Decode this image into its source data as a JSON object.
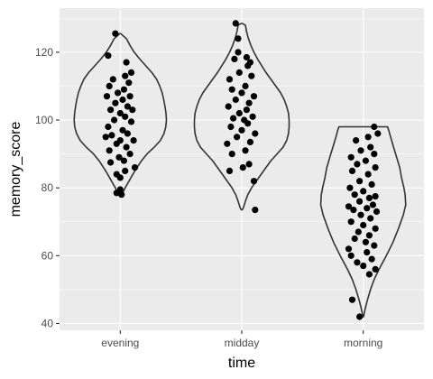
{
  "chart_data": {
    "type": "violin",
    "title": "",
    "xlabel": "time",
    "ylabel": "memory_score",
    "categories": [
      "evening",
      "midday",
      "morning"
    ],
    "ylim": [
      38,
      133
    ],
    "yticks": [
      40,
      60,
      80,
      100,
      120
    ],
    "grid": true,
    "legend": "none",
    "colors": {
      "panel": "#ebebeb",
      "grid": "#ffffff",
      "outline": "#333333",
      "point": "#000000"
    },
    "violins": [
      {
        "category": "evening",
        "profile": [
          [
            77.5,
            0.003
          ],
          [
            78,
            0.013
          ],
          [
            80,
            0.04
          ],
          [
            82,
            0.072
          ],
          [
            85,
            0.12
          ],
          [
            88,
            0.175
          ],
          [
            90,
            0.22
          ],
          [
            92,
            0.28
          ],
          [
            94,
            0.33
          ],
          [
            96,
            0.36
          ],
          [
            98,
            0.375
          ],
          [
            100,
            0.38
          ],
          [
            102,
            0.376
          ],
          [
            104,
            0.368
          ],
          [
            106,
            0.358
          ],
          [
            108,
            0.345
          ],
          [
            110,
            0.325
          ],
          [
            112,
            0.3
          ],
          [
            114,
            0.26
          ],
          [
            116,
            0.21
          ],
          [
            118,
            0.16
          ],
          [
            120,
            0.115
          ],
          [
            122,
            0.08
          ],
          [
            124,
            0.05
          ],
          [
            125.5,
            0.003
          ]
        ],
        "points": [
          [
            -0.04,
            125.5
          ],
          [
            0.01,
            78
          ],
          [
            -0.03,
            78.5
          ],
          [
            0.0,
            79.5
          ],
          [
            -0.1,
            119
          ],
          [
            0.05,
            117
          ],
          [
            0.09,
            114
          ],
          [
            0.04,
            113
          ],
          [
            -0.06,
            112
          ],
          [
            0.07,
            111
          ],
          [
            -0.09,
            110
          ],
          [
            0.03,
            109
          ],
          [
            -0.02,
            108
          ],
          [
            0.08,
            107
          ],
          [
            -0.11,
            107
          ],
          [
            0.02,
            106
          ],
          [
            -0.04,
            105
          ],
          [
            0.06,
            104
          ],
          [
            0.1,
            103
          ],
          [
            -0.08,
            103
          ],
          [
            0.0,
            102
          ],
          [
            0.04,
            101
          ],
          [
            -0.05,
            100
          ],
          [
            0.09,
            99.5
          ],
          [
            -0.1,
            98
          ],
          [
            0.02,
            97
          ],
          [
            0.06,
            96
          ],
          [
            -0.07,
            95.5
          ],
          [
            -0.12,
            95
          ],
          [
            0.0,
            94
          ],
          [
            0.11,
            94
          ],
          [
            -0.03,
            93
          ],
          [
            0.05,
            92
          ],
          [
            -0.09,
            91
          ],
          [
            0.08,
            90
          ],
          [
            -0.01,
            89
          ],
          [
            0.03,
            88
          ],
          [
            -0.08,
            87.5
          ],
          [
            0.12,
            86
          ],
          [
            0.04,
            85
          ],
          [
            -0.03,
            84
          ],
          [
            0.0,
            83
          ]
        ]
      },
      {
        "category": "midday",
        "profile": [
          [
            73.5,
            0.003
          ],
          [
            74,
            0.012
          ],
          [
            76,
            0.03
          ],
          [
            78,
            0.05
          ],
          [
            80,
            0.08
          ],
          [
            84,
            0.16
          ],
          [
            88,
            0.24
          ],
          [
            90,
            0.29
          ],
          [
            92,
            0.34
          ],
          [
            94,
            0.37
          ],
          [
            96,
            0.385
          ],
          [
            98,
            0.39
          ],
          [
            100,
            0.39
          ],
          [
            102,
            0.385
          ],
          [
            104,
            0.37
          ],
          [
            106,
            0.35
          ],
          [
            108,
            0.32
          ],
          [
            110,
            0.28
          ],
          [
            112,
            0.24
          ],
          [
            114,
            0.2
          ],
          [
            116,
            0.165
          ],
          [
            118,
            0.13
          ],
          [
            120,
            0.1
          ],
          [
            122,
            0.075
          ],
          [
            124,
            0.055
          ],
          [
            126,
            0.04
          ],
          [
            128,
            0.03
          ],
          [
            128.5,
            0.003
          ]
        ],
        "points": [
          [
            -0.05,
            128.5
          ],
          [
            -0.03,
            124
          ],
          [
            0.11,
            73.5
          ],
          [
            0.1,
            82
          ],
          [
            -0.1,
            85
          ],
          [
            0.06,
            87
          ],
          [
            0.01,
            86
          ],
          [
            -0.08,
            90
          ],
          [
            0.03,
            91
          ],
          [
            -0.12,
            93
          ],
          [
            0.07,
            93.5
          ],
          [
            -0.04,
            95
          ],
          [
            0.11,
            96
          ],
          [
            0.0,
            97
          ],
          [
            -0.09,
            98
          ],
          [
            0.05,
            99
          ],
          [
            0.02,
            100
          ],
          [
            -0.07,
            100.5
          ],
          [
            0.09,
            101
          ],
          [
            -0.02,
            102
          ],
          [
            0.04,
            103
          ],
          [
            -0.11,
            104
          ],
          [
            0.06,
            105
          ],
          [
            -0.05,
            106
          ],
          [
            0.1,
            107
          ],
          [
            0.0,
            108
          ],
          [
            -0.08,
            109
          ],
          [
            0.03,
            110
          ],
          [
            -0.1,
            112
          ],
          [
            0.08,
            113
          ],
          [
            -0.02,
            114
          ],
          [
            0.05,
            116
          ],
          [
            -0.06,
            118
          ],
          [
            0.04,
            118.5
          ],
          [
            0.07,
            117
          ],
          [
            -0.03,
            120
          ]
        ]
      },
      {
        "category": "morning",
        "profile": [
          [
            42,
            0.003
          ],
          [
            43,
            0.008
          ],
          [
            45,
            0.02
          ],
          [
            47,
            0.035
          ],
          [
            50,
            0.06
          ],
          [
            53,
            0.09
          ],
          [
            56,
            0.13
          ],
          [
            60,
            0.19
          ],
          [
            64,
            0.245
          ],
          [
            68,
            0.29
          ],
          [
            72,
            0.33
          ],
          [
            75,
            0.35
          ],
          [
            78,
            0.345
          ],
          [
            80,
            0.335
          ],
          [
            83,
            0.315
          ],
          [
            86,
            0.3
          ],
          [
            89,
            0.275
          ],
          [
            92,
            0.25
          ],
          [
            95,
            0.225
          ],
          [
            97,
            0.21
          ],
          [
            98,
            0.2
          ]
        ],
        "points": [
          [
            -0.03,
            42
          ],
          [
            -0.09,
            47
          ],
          [
            0.05,
            54.5
          ],
          [
            0.1,
            56
          ],
          [
            0.0,
            57
          ],
          [
            -0.05,
            58
          ],
          [
            0.07,
            59
          ],
          [
            -0.1,
            60
          ],
          [
            0.03,
            61
          ],
          [
            -0.12,
            62
          ],
          [
            0.09,
            63
          ],
          [
            0.02,
            64
          ],
          [
            -0.07,
            65
          ],
          [
            0.05,
            66
          ],
          [
            -0.04,
            67
          ],
          [
            0.1,
            68
          ],
          [
            0.0,
            69
          ],
          [
            -0.1,
            70
          ],
          [
            0.06,
            71
          ],
          [
            -0.02,
            72
          ],
          [
            0.11,
            73
          ],
          [
            -0.08,
            73.5
          ],
          [
            0.03,
            74
          ],
          [
            -0.12,
            74.5
          ],
          [
            0.08,
            75
          ],
          [
            -0.03,
            76
          ],
          [
            0.05,
            77
          ],
          [
            0.1,
            77.5
          ],
          [
            -0.07,
            78
          ],
          [
            0.0,
            79
          ],
          [
            -0.11,
            80
          ],
          [
            0.07,
            81
          ],
          [
            -0.03,
            82
          ],
          [
            0.04,
            84
          ],
          [
            -0.09,
            85
          ],
          [
            0.1,
            86
          ],
          [
            -0.05,
            87
          ],
          [
            0.02,
            88
          ],
          [
            -0.1,
            89
          ],
          [
            0.09,
            90
          ],
          [
            -0.02,
            91
          ],
          [
            0.06,
            92
          ],
          [
            -0.06,
            94
          ],
          [
            0.04,
            95
          ],
          [
            0.12,
            96
          ],
          [
            0.09,
            98
          ]
        ]
      }
    ]
  }
}
